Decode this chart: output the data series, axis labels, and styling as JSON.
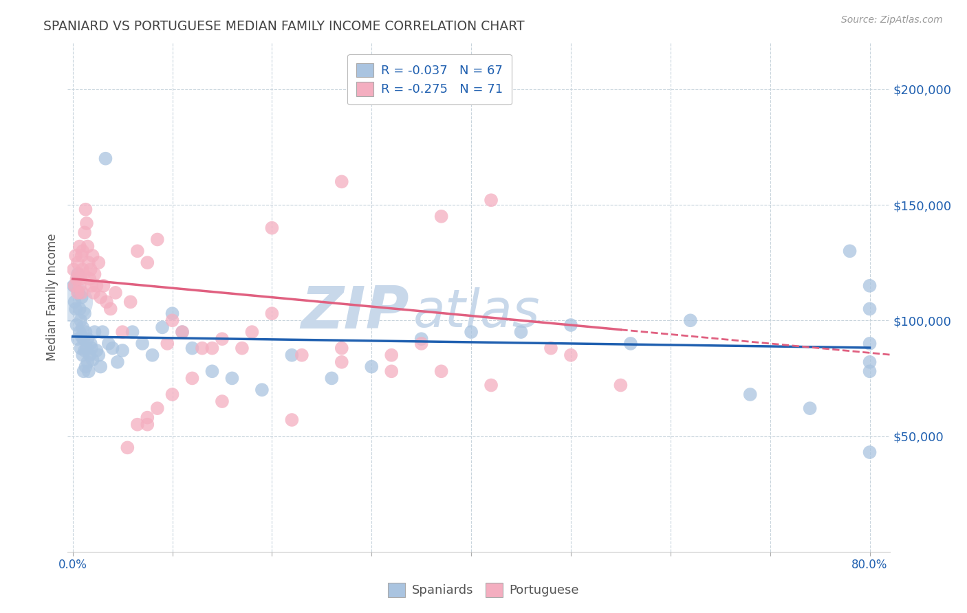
{
  "title": "SPANIARD VS PORTUGUESE MEDIAN FAMILY INCOME CORRELATION CHART",
  "source": "Source: ZipAtlas.com",
  "ylabel": "Median Family Income",
  "y_tick_labels": [
    "$50,000",
    "$100,000",
    "$150,000",
    "$200,000"
  ],
  "y_tick_values": [
    50000,
    100000,
    150000,
    200000
  ],
  "ylim": [
    0,
    220000
  ],
  "xlim": [
    -0.005,
    0.82
  ],
  "spaniards_color": "#aac4e0",
  "portuguese_color": "#f4aec0",
  "trend_spaniards_color": "#2060b0",
  "trend_portuguese_color": "#e06080",
  "watermark_text": "ZIPatlas",
  "watermark_color": "#c8d8ea",
  "background_color": "#ffffff",
  "grid_color": "#c8d4dc",
  "title_color": "#444444",
  "source_color": "#999999",
  "axis_label_color": "#555555",
  "tick_color_right": "#2060b0",
  "legend_text_color": "#2060b0",
  "bottom_legend_color": "#555555",
  "spaniards_x": [
    0.001,
    0.002,
    0.003,
    0.004,
    0.005,
    0.005,
    0.006,
    0.007,
    0.007,
    0.008,
    0.008,
    0.009,
    0.009,
    0.01,
    0.01,
    0.011,
    0.011,
    0.012,
    0.012,
    0.013,
    0.013,
    0.014,
    0.015,
    0.015,
    0.016,
    0.017,
    0.018,
    0.019,
    0.02,
    0.022,
    0.024,
    0.026,
    0.028,
    0.03,
    0.033,
    0.036,
    0.04,
    0.045,
    0.05,
    0.06,
    0.07,
    0.08,
    0.09,
    0.1,
    0.11,
    0.12,
    0.14,
    0.16,
    0.19,
    0.22,
    0.26,
    0.3,
    0.35,
    0.4,
    0.45,
    0.5,
    0.56,
    0.62,
    0.68,
    0.74,
    0.78,
    0.8,
    0.8,
    0.8,
    0.8,
    0.8,
    0.8
  ],
  "spaniards_y": [
    115000,
    108000,
    105000,
    98000,
    120000,
    92000,
    112000,
    95000,
    105000,
    88000,
    100000,
    110000,
    93000,
    97000,
    85000,
    92000,
    78000,
    103000,
    87000,
    95000,
    80000,
    88000,
    92000,
    82000,
    78000,
    85000,
    90000,
    88000,
    83000,
    95000,
    87000,
    85000,
    80000,
    95000,
    170000,
    90000,
    88000,
    82000,
    87000,
    95000,
    90000,
    85000,
    97000,
    103000,
    95000,
    88000,
    78000,
    75000,
    70000,
    85000,
    75000,
    80000,
    92000,
    95000,
    95000,
    98000,
    90000,
    100000,
    68000,
    62000,
    130000,
    43000,
    105000,
    115000,
    82000,
    78000,
    90000
  ],
  "portuguese_x": [
    0.001,
    0.002,
    0.003,
    0.004,
    0.005,
    0.005,
    0.006,
    0.007,
    0.007,
    0.008,
    0.009,
    0.009,
    0.01,
    0.01,
    0.011,
    0.012,
    0.013,
    0.014,
    0.015,
    0.016,
    0.017,
    0.018,
    0.019,
    0.02,
    0.021,
    0.022,
    0.024,
    0.026,
    0.028,
    0.031,
    0.034,
    0.038,
    0.043,
    0.05,
    0.058,
    0.065,
    0.075,
    0.085,
    0.095,
    0.11,
    0.13,
    0.15,
    0.17,
    0.2,
    0.23,
    0.27,
    0.32,
    0.37,
    0.42,
    0.48,
    0.37,
    0.42,
    0.27,
    0.2,
    0.35,
    0.5,
    0.22,
    0.15,
    0.1,
    0.055,
    0.065,
    0.075,
    0.085,
    0.1,
    0.12,
    0.27,
    0.32,
    0.14,
    0.18,
    0.075,
    0.55
  ],
  "portuguese_y": [
    122000,
    115000,
    128000,
    118000,
    112000,
    125000,
    120000,
    132000,
    115000,
    118000,
    128000,
    112000,
    122000,
    130000,
    120000,
    138000,
    148000,
    142000,
    132000,
    125000,
    118000,
    122000,
    115000,
    128000,
    112000,
    120000,
    115000,
    125000,
    110000,
    115000,
    108000,
    105000,
    112000,
    95000,
    108000,
    130000,
    125000,
    135000,
    90000,
    95000,
    88000,
    92000,
    88000,
    103000,
    85000,
    88000,
    85000,
    78000,
    72000,
    88000,
    145000,
    152000,
    160000,
    140000,
    90000,
    85000,
    57000,
    65000,
    100000,
    45000,
    55000,
    58000,
    62000,
    68000,
    75000,
    82000,
    78000,
    88000,
    95000,
    55000,
    72000
  ]
}
